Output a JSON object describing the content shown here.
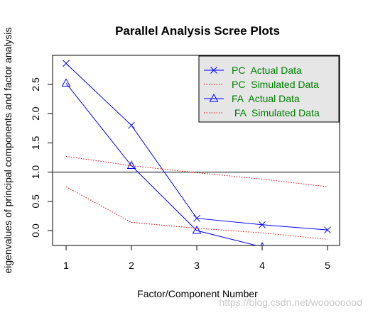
{
  "chart_data": {
    "type": "line",
    "title": "Parallel Analysis Scree Plots",
    "xlabel": "Factor/Component Number",
    "ylabel": "eigenvalues of principal components and factor analysis",
    "x": [
      1,
      2,
      3,
      4,
      5
    ],
    "xlim": [
      1,
      5
    ],
    "ylim": [
      -0.27,
      3.0
    ],
    "x_ticks": [
      1,
      2,
      3,
      4,
      5
    ],
    "y_ticks": [
      0.0,
      0.5,
      1.0,
      1.5,
      2.0,
      2.5
    ],
    "y_tick_labels": [
      "0.0",
      "0.5",
      "1.0",
      "1.5",
      "2.0",
      "2.5"
    ],
    "reference_line": {
      "y": 1.0,
      "color": "#000000"
    },
    "series": [
      {
        "name": "PC  Actual Data",
        "values": [
          2.86,
          1.8,
          0.21,
          0.1,
          0.01
        ],
        "color": "#0000ff",
        "line": "solid",
        "marker": "x"
      },
      {
        "name": "PC  Simulated Data",
        "values": [
          1.27,
          1.11,
          0.99,
          0.88,
          0.75
        ],
        "color": "#ff0000",
        "line": "dotted",
        "marker": "none"
      },
      {
        "name": "FA  Actual Data",
        "values": [
          2.52,
          1.11,
          0.0,
          -0.28,
          -0.35
        ],
        "color": "#0000ff",
        "line": "solid",
        "marker": "triangle"
      },
      {
        "name": "FA  Simulated Data",
        "values": [
          0.75,
          0.14,
          0.04,
          -0.04,
          -0.15
        ],
        "color": "#ff0000",
        "line": "dotted",
        "marker": "none"
      }
    ],
    "legend": {
      "placement": "top-right",
      "background": "#e6e6e6",
      "text_color": "#008000",
      "labels": [
        "PC  Actual Data",
        "PC  Simulated Data",
        "FA  Actual Data",
        " FA  Simulated Data"
      ]
    },
    "grid": false
  },
  "watermark": "https://blog.csdn.net/woooooood"
}
